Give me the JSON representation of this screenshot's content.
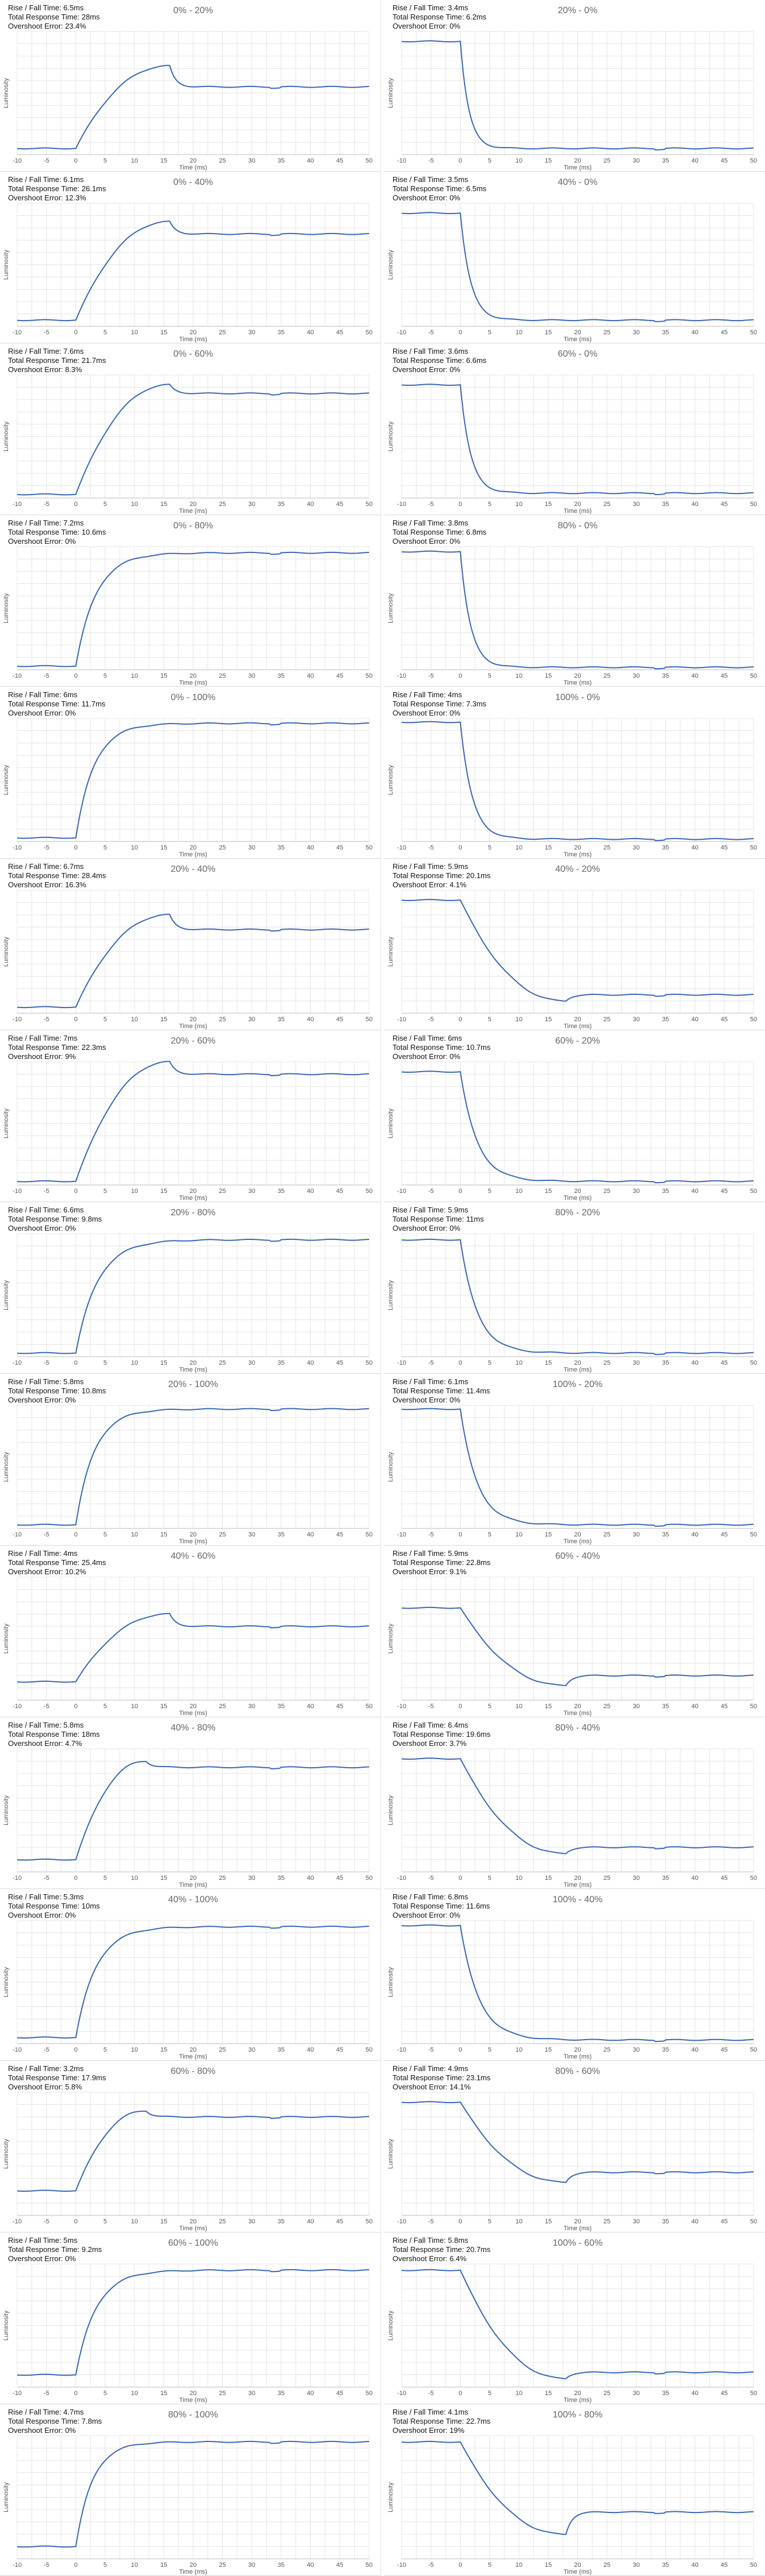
{
  "shared": {
    "xlabel": "Time (ms)",
    "ylabel": "Luminosity",
    "line_color": "#3a66b5",
    "grid_color": "#e4e4e4",
    "x_ticks": [
      -10,
      -5,
      0,
      5,
      10,
      15,
      20,
      25,
      30,
      35,
      40,
      45,
      50
    ]
  },
  "chart_data": [
    {
      "type": "line",
      "title": "0% - 20%",
      "rise_fall": "Rise / Fall Time: 6.5ms",
      "total": "Total Response Time: 28ms",
      "overshoot": "Overshoot Error: 23.4%",
      "xlabel": "Time (ms)",
      "ylabel": "Luminosity",
      "xlim": [
        -10,
        50
      ],
      "start_level": 0.05,
      "end_level": 0.55,
      "transition_time_ms": 16,
      "overshoot_level": 0.72,
      "overshoot_time_ms": 16
    },
    {
      "type": "line",
      "title": "20% - 0%",
      "rise_fall": "Rise / Fall Time: 3.4ms",
      "total": "Total Response Time: 6.2ms",
      "overshoot": "Overshoot Error: 0%",
      "xlabel": "Time (ms)",
      "ylabel": "Luminosity",
      "xlim": [
        -10,
        50
      ],
      "start_level": 0.92,
      "end_level": 0.05,
      "transition_time_ms": 5
    },
    {
      "type": "line",
      "title": "0% - 40%",
      "rise_fall": "Rise / Fall Time: 6.1ms",
      "total": "Total Response Time: 26.1ms",
      "overshoot": "Overshoot Error: 12.3%",
      "xlabel": "Time (ms)",
      "ylabel": "Luminosity",
      "xlim": [
        -10,
        50
      ],
      "start_level": 0.05,
      "end_level": 0.75,
      "transition_time_ms": 16,
      "overshoot_level": 0.85,
      "overshoot_time_ms": 16
    },
    {
      "type": "line",
      "title": "40% - 0%",
      "rise_fall": "Rise / Fall Time: 3.5ms",
      "total": "Total Response Time: 6.5ms",
      "overshoot": "Overshoot Error: 0%",
      "xlabel": "Time (ms)",
      "ylabel": "Luminosity",
      "xlim": [
        -10,
        50
      ],
      "start_level": 0.92,
      "end_level": 0.05,
      "transition_time_ms": 6
    },
    {
      "type": "line",
      "title": "0% - 60%",
      "rise_fall": "Rise / Fall Time: 7.6ms",
      "total": "Total Response Time: 21.7ms",
      "overshoot": "Overshoot Error: 8.3%",
      "xlabel": "Time (ms)",
      "ylabel": "Luminosity",
      "xlim": [
        -10,
        50
      ],
      "start_level": 0.03,
      "end_level": 0.85,
      "transition_time_ms": 16,
      "overshoot_level": 0.92,
      "overshoot_time_ms": 16
    },
    {
      "type": "line",
      "title": "60% - 0%",
      "rise_fall": "Rise / Fall Time: 3.6ms",
      "total": "Total Response Time: 6.6ms",
      "overshoot": "Overshoot Error: 0%",
      "xlabel": "Time (ms)",
      "ylabel": "Luminosity",
      "xlim": [
        -10,
        50
      ],
      "start_level": 0.92,
      "end_level": 0.04,
      "transition_time_ms": 6
    },
    {
      "type": "line",
      "title": "0% - 80%",
      "rise_fall": "Rise / Fall Time: 7.2ms",
      "total": "Total Response Time: 10.6ms",
      "overshoot": "Overshoot Error: 0%",
      "xlabel": "Time (ms)",
      "ylabel": "Luminosity",
      "xlim": [
        -10,
        50
      ],
      "start_level": 0.03,
      "end_level": 0.95,
      "transition_time_ms": 12
    },
    {
      "type": "line",
      "title": "80% - 0%",
      "rise_fall": "Rise / Fall Time: 3.8ms",
      "total": "Total Response Time: 6.8ms",
      "overshoot": "Overshoot Error: 0%",
      "xlabel": "Time (ms)",
      "ylabel": "Luminosity",
      "xlim": [
        -10,
        50
      ],
      "start_level": 0.96,
      "end_level": 0.02,
      "transition_time_ms": 6
    },
    {
      "type": "line",
      "title": "0% - 100%",
      "rise_fall": "Rise / Fall Time: 6ms",
      "total": "Total Response Time: 11.7ms",
      "overshoot": "Overshoot Error: 0%",
      "xlabel": "Time (ms)",
      "ylabel": "Luminosity",
      "xlim": [
        -10,
        50
      ],
      "start_level": 0.03,
      "end_level": 0.96,
      "transition_time_ms": 11
    },
    {
      "type": "line",
      "title": "100% - 0%",
      "rise_fall": "Rise / Fall Time: 4ms",
      "total": "Total Response Time: 7.3ms",
      "overshoot": "Overshoot Error: 0%",
      "xlabel": "Time (ms)",
      "ylabel": "Luminosity",
      "xlim": [
        -10,
        50
      ],
      "start_level": 0.97,
      "end_level": 0.02,
      "transition_time_ms": 7
    },
    {
      "type": "line",
      "title": "20% - 40%",
      "rise_fall": "Rise / Fall Time: 6.7ms",
      "total": "Total Response Time: 28.4ms",
      "overshoot": "Overshoot Error: 16.3%",
      "xlabel": "Time (ms)",
      "ylabel": "Luminosity",
      "xlim": [
        -10,
        50
      ],
      "start_level": 0.05,
      "end_level": 0.68,
      "transition_time_ms": 16,
      "overshoot_level": 0.8,
      "overshoot_time_ms": 16
    },
    {
      "type": "line",
      "title": "40% - 20%",
      "rise_fall": "Rise / Fall Time: 5.9ms",
      "total": "Total Response Time: 20.1ms",
      "overshoot": "Overshoot Error: 4.1%",
      "xlabel": "Time (ms)",
      "ylabel": "Luminosity",
      "xlim": [
        -10,
        50
      ],
      "start_level": 0.92,
      "end_level": 0.15,
      "transition_time_ms": 10,
      "overshoot_level": 0.1,
      "overshoot_time_ms": 18
    },
    {
      "type": "line",
      "title": "20% - 60%",
      "rise_fall": "Rise / Fall Time: 7ms",
      "total": "Total Response Time: 22.3ms",
      "overshoot": "Overshoot Error: 9%",
      "xlabel": "Time (ms)",
      "ylabel": "Luminosity",
      "xlim": [
        -10,
        50
      ],
      "start_level": 0.03,
      "end_level": 0.9,
      "transition_time_ms": 16,
      "overshoot_level": 1.0,
      "overshoot_time_ms": 16
    },
    {
      "type": "line",
      "title": "60% - 20%",
      "rise_fall": "Rise / Fall Time: 6ms",
      "total": "Total Response Time: 10.7ms",
      "overshoot": "Overshoot Error: 0%",
      "xlabel": "Time (ms)",
      "ylabel": "Luminosity",
      "xlim": [
        -10,
        50
      ],
      "start_level": 0.92,
      "end_level": 0.03,
      "transition_time_ms": 10
    },
    {
      "type": "line",
      "title": "20% - 80%",
      "rise_fall": "Rise / Fall Time: 6.6ms",
      "total": "Total Response Time: 9.8ms",
      "overshoot": "Overshoot Error: 0%",
      "xlabel": "Time (ms)",
      "ylabel": "Luminosity",
      "xlim": [
        -10,
        50
      ],
      "start_level": 0.03,
      "end_level": 0.95,
      "transition_time_ms": 13
    },
    {
      "type": "line",
      "title": "80% - 20%",
      "rise_fall": "Rise / Fall Time: 5.9ms",
      "total": "Total Response Time: 11ms",
      "overshoot": "Overshoot Error: 0%",
      "xlabel": "Time (ms)",
      "ylabel": "Luminosity",
      "xlim": [
        -10,
        50
      ],
      "start_level": 0.95,
      "end_level": 0.03,
      "transition_time_ms": 10
    },
    {
      "type": "line",
      "title": "20% - 100%",
      "rise_fall": "Rise / Fall Time: 5.8ms",
      "total": "Total Response Time: 10.8ms",
      "overshoot": "Overshoot Error: 0%",
      "xlabel": "Time (ms)",
      "ylabel": "Luminosity",
      "xlim": [
        -10,
        50
      ],
      "start_level": 0.03,
      "end_level": 0.97,
      "transition_time_ms": 11
    },
    {
      "type": "line",
      "title": "100% - 20%",
      "rise_fall": "Rise / Fall Time: 6.1ms",
      "total": "Total Response Time: 11.4ms",
      "overshoot": "Overshoot Error: 0%",
      "xlabel": "Time (ms)",
      "ylabel": "Luminosity",
      "xlim": [
        -10,
        50
      ],
      "start_level": 0.97,
      "end_level": 0.03,
      "transition_time_ms": 10
    },
    {
      "type": "line",
      "title": "40% - 60%",
      "rise_fall": "Rise / Fall Time: 4ms",
      "total": "Total Response Time: 25.4ms",
      "overshoot": "Overshoot Error: 10.2%",
      "xlabel": "Time (ms)",
      "ylabel": "Luminosity",
      "xlim": [
        -10,
        50
      ],
      "start_level": 0.15,
      "end_level": 0.6,
      "transition_time_ms": 16,
      "overshoot_level": 0.7,
      "overshoot_time_ms": 16
    },
    {
      "type": "line",
      "title": "60% - 40%",
      "rise_fall": "Rise / Fall Time: 5.9ms",
      "total": "Total Response Time: 22.8ms",
      "overshoot": "Overshoot Error: 9.1%",
      "xlabel": "Time (ms)",
      "ylabel": "Luminosity",
      "xlim": [
        -10,
        50
      ],
      "start_level": 0.75,
      "end_level": 0.2,
      "transition_time_ms": 10,
      "overshoot_level": 0.12,
      "overshoot_time_ms": 18
    },
    {
      "type": "line",
      "title": "40% - 80%",
      "rise_fall": "Rise / Fall Time: 5.8ms",
      "total": "Total Response Time: 18ms",
      "overshoot": "Overshoot Error: 4.7%",
      "xlabel": "Time (ms)",
      "ylabel": "Luminosity",
      "xlim": [
        -10,
        50
      ],
      "start_level": 0.1,
      "end_level": 0.85,
      "transition_time_ms": 12,
      "overshoot_level": 0.9,
      "overshoot_time_ms": 12
    },
    {
      "type": "line",
      "title": "80% - 40%",
      "rise_fall": "Rise / Fall Time: 6.4ms",
      "total": "Total Response Time: 19.6ms",
      "overshoot": "Overshoot Error: 3.7%",
      "xlabel": "Time (ms)",
      "ylabel": "Luminosity",
      "xlim": [
        -10,
        50
      ],
      "start_level": 0.92,
      "end_level": 0.2,
      "transition_time_ms": 10,
      "overshoot_level": 0.15,
      "overshoot_time_ms": 18
    },
    {
      "type": "line",
      "title": "40% - 100%",
      "rise_fall": "Rise / Fall Time: 5.3ms",
      "total": "Total Response Time: 10ms",
      "overshoot": "Overshoot Error: 0%",
      "xlabel": "Time (ms)",
      "ylabel": "Luminosity",
      "xlim": [
        -10,
        50
      ],
      "start_level": 0.05,
      "end_level": 0.95,
      "transition_time_ms": 12
    },
    {
      "type": "line",
      "title": "100% - 40%",
      "rise_fall": "Rise / Fall Time: 6.8ms",
      "total": "Total Response Time: 11.6ms",
      "overshoot": "Overshoot Error: 0%",
      "xlabel": "Time (ms)",
      "ylabel": "Luminosity",
      "xlim": [
        -10,
        50
      ],
      "start_level": 0.96,
      "end_level": 0.03,
      "transition_time_ms": 11
    },
    {
      "type": "line",
      "title": "60% - 80%",
      "rise_fall": "Rise / Fall Time: 3.2ms",
      "total": "Total Response Time: 17.9ms",
      "overshoot": "Overshoot Error: 5.8%",
      "xlabel": "Time (ms)",
      "ylabel": "Luminosity",
      "xlim": [
        -10,
        50
      ],
      "start_level": 0.2,
      "end_level": 0.8,
      "transition_time_ms": 12,
      "overshoot_level": 0.85,
      "overshoot_time_ms": 12
    },
    {
      "type": "line",
      "title": "80% - 60%",
      "rise_fall": "Rise / Fall Time: 4.9ms",
      "total": "Total Response Time: 23.1ms",
      "overshoot": "Overshoot Error: 14.1%",
      "xlabel": "Time (ms)",
      "ylabel": "Luminosity",
      "xlim": [
        -10,
        50
      ],
      "start_level": 0.92,
      "end_level": 0.35,
      "transition_time_ms": 10,
      "overshoot_level": 0.27,
      "overshoot_time_ms": 18
    },
    {
      "type": "line",
      "title": "60% - 100%",
      "rise_fall": "Rise / Fall Time: 5ms",
      "total": "Total Response Time: 9.2ms",
      "overshoot": "Overshoot Error: 0%",
      "xlabel": "Time (ms)",
      "ylabel": "Luminosity",
      "xlim": [
        -10,
        50
      ],
      "start_level": 0.1,
      "end_level": 0.95,
      "transition_time_ms": 12
    },
    {
      "type": "line",
      "title": "100% - 60%",
      "rise_fall": "Rise / Fall Time: 5.8ms",
      "total": "Total Response Time: 20.7ms",
      "overshoot": "Overshoot Error: 6.4%",
      "xlabel": "Time (ms)",
      "ylabel": "Luminosity",
      "xlim": [
        -10,
        50
      ],
      "start_level": 0.95,
      "end_level": 0.12,
      "transition_time_ms": 11,
      "overshoot_level": 0.07,
      "overshoot_time_ms": 18
    },
    {
      "type": "line",
      "title": "80% - 100%",
      "rise_fall": "Rise / Fall Time: 4.7ms",
      "total": "Total Response Time: 7.8ms",
      "overshoot": "Overshoot Error: 0%",
      "xlabel": "Time (ms)",
      "ylabel": "Luminosity",
      "xlim": [
        -10,
        50
      ],
      "start_level": 0.1,
      "end_level": 0.95,
      "transition_time_ms": 10
    },
    {
      "type": "line",
      "title": "100% - 80%",
      "rise_fall": "Rise / Fall Time: 4.1ms",
      "total": "Total Response Time: 22.7ms",
      "overshoot": "Overshoot Error: 19%",
      "xlabel": "Time (ms)",
      "ylabel": "Luminosity",
      "xlim": [
        -10,
        50
      ],
      "start_level": 0.95,
      "end_level": 0.38,
      "transition_time_ms": 10,
      "overshoot_level": 0.2,
      "overshoot_time_ms": 18
    }
  ]
}
